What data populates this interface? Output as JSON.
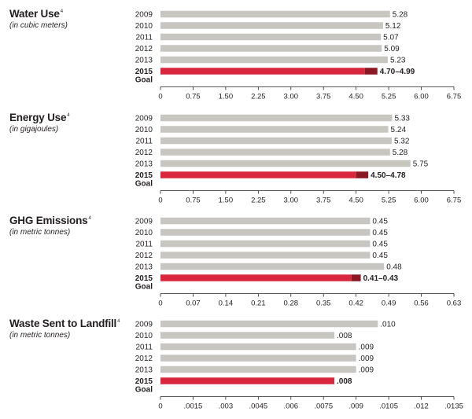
{
  "colors": {
    "history_bar": "#c8c6c0",
    "goal_bar": "#d7263d",
    "goal_range": "#8a1724",
    "axis": "#231f20"
  },
  "chart_data": [
    {
      "type": "bar",
      "orientation": "horizontal",
      "title": "Water Use",
      "footnote": "4",
      "subtitle": "(in cubic meters)",
      "categories": [
        "2009",
        "2010",
        "2011",
        "2012",
        "2013"
      ],
      "values": [
        5.28,
        5.12,
        5.07,
        5.09,
        5.23
      ],
      "value_labels": [
        "5.28",
        "5.12",
        "5.07",
        "5.09",
        "5.23"
      ],
      "goal": {
        "year": "2015",
        "label": "Goal",
        "low": 4.7,
        "high": 4.99,
        "value_label": "4.70–4.99"
      },
      "xlim": [
        0,
        6.75
      ],
      "ticks": [
        0,
        0.75,
        1.5,
        2.25,
        3,
        3.75,
        4.5,
        5.25,
        6,
        6.75
      ],
      "tick_labels": [
        "0",
        "0.75",
        "1.50",
        "2.25",
        "3.00",
        "3.75",
        "4.50",
        "5.25",
        "6.00",
        "6.75"
      ]
    },
    {
      "type": "bar",
      "orientation": "horizontal",
      "title": "Energy Use",
      "footnote": "4",
      "subtitle": "(in gigajoules)",
      "categories": [
        "2009",
        "2010",
        "2011",
        "2012",
        "2013"
      ],
      "values": [
        5.33,
        5.24,
        5.32,
        5.28,
        5.75
      ],
      "value_labels": [
        "5.33",
        "5.24",
        "5.32",
        "5.28",
        "5.75"
      ],
      "goal": {
        "year": "2015",
        "label": "Goal",
        "low": 4.5,
        "high": 4.78,
        "value_label": "4.50–4.78"
      },
      "xlim": [
        0,
        6.75
      ],
      "ticks": [
        0,
        0.75,
        1.5,
        2.25,
        3,
        3.75,
        4.5,
        5.25,
        6,
        6.75
      ],
      "tick_labels": [
        "0",
        "0.75",
        "1.50",
        "2.25",
        "3.00",
        "3.75",
        "4.50",
        "5.25",
        "6.00",
        "6.75"
      ]
    },
    {
      "type": "bar",
      "orientation": "horizontal",
      "title": "GHG Emissions",
      "footnote": "4",
      "subtitle": "(in metric tonnes)",
      "categories": [
        "2009",
        "2010",
        "2011",
        "2012",
        "2013"
      ],
      "values": [
        0.45,
        0.45,
        0.45,
        0.45,
        0.48
      ],
      "value_labels": [
        "0.45",
        "0.45",
        "0.45",
        "0.45",
        "0.48"
      ],
      "goal": {
        "year": "2015",
        "label": "Goal",
        "low": 0.41,
        "high": 0.43,
        "value_label": "0.41–0.43"
      },
      "xlim": [
        0,
        0.63
      ],
      "ticks": [
        0,
        0.07,
        0.14,
        0.21,
        0.28,
        0.35,
        0.42,
        0.49,
        0.56,
        0.63
      ],
      "tick_labels": [
        "0",
        "0.07",
        "0.14",
        "0.21",
        "0.28",
        "0.35",
        "0.42",
        "0.49",
        "0.56",
        "0.63"
      ]
    },
    {
      "type": "bar",
      "orientation": "horizontal",
      "title": "Waste Sent to Landfill",
      "footnote": "4",
      "subtitle": "(in metric tonnes)",
      "categories": [
        "2009",
        "2010",
        "2011",
        "2012",
        "2013"
      ],
      "values": [
        0.01,
        0.008,
        0.009,
        0.009,
        0.009
      ],
      "value_labels": [
        ".010",
        ".008",
        ".009",
        ".009",
        ".009"
      ],
      "goal": {
        "year": "2015",
        "label": "Goal",
        "low": 0.008,
        "high": 0.008,
        "value_label": ".008"
      },
      "xlim": [
        0,
        0.0135
      ],
      "ticks": [
        0,
        0.0015,
        0.003,
        0.0045,
        0.006,
        0.0075,
        0.009,
        0.0105,
        0.012,
        0.0135
      ],
      "tick_labels": [
        "0",
        ".0015",
        ".003",
        ".0045",
        ".006",
        ".0075",
        ".009",
        ".0105",
        ".012",
        ".0135"
      ]
    }
  ]
}
